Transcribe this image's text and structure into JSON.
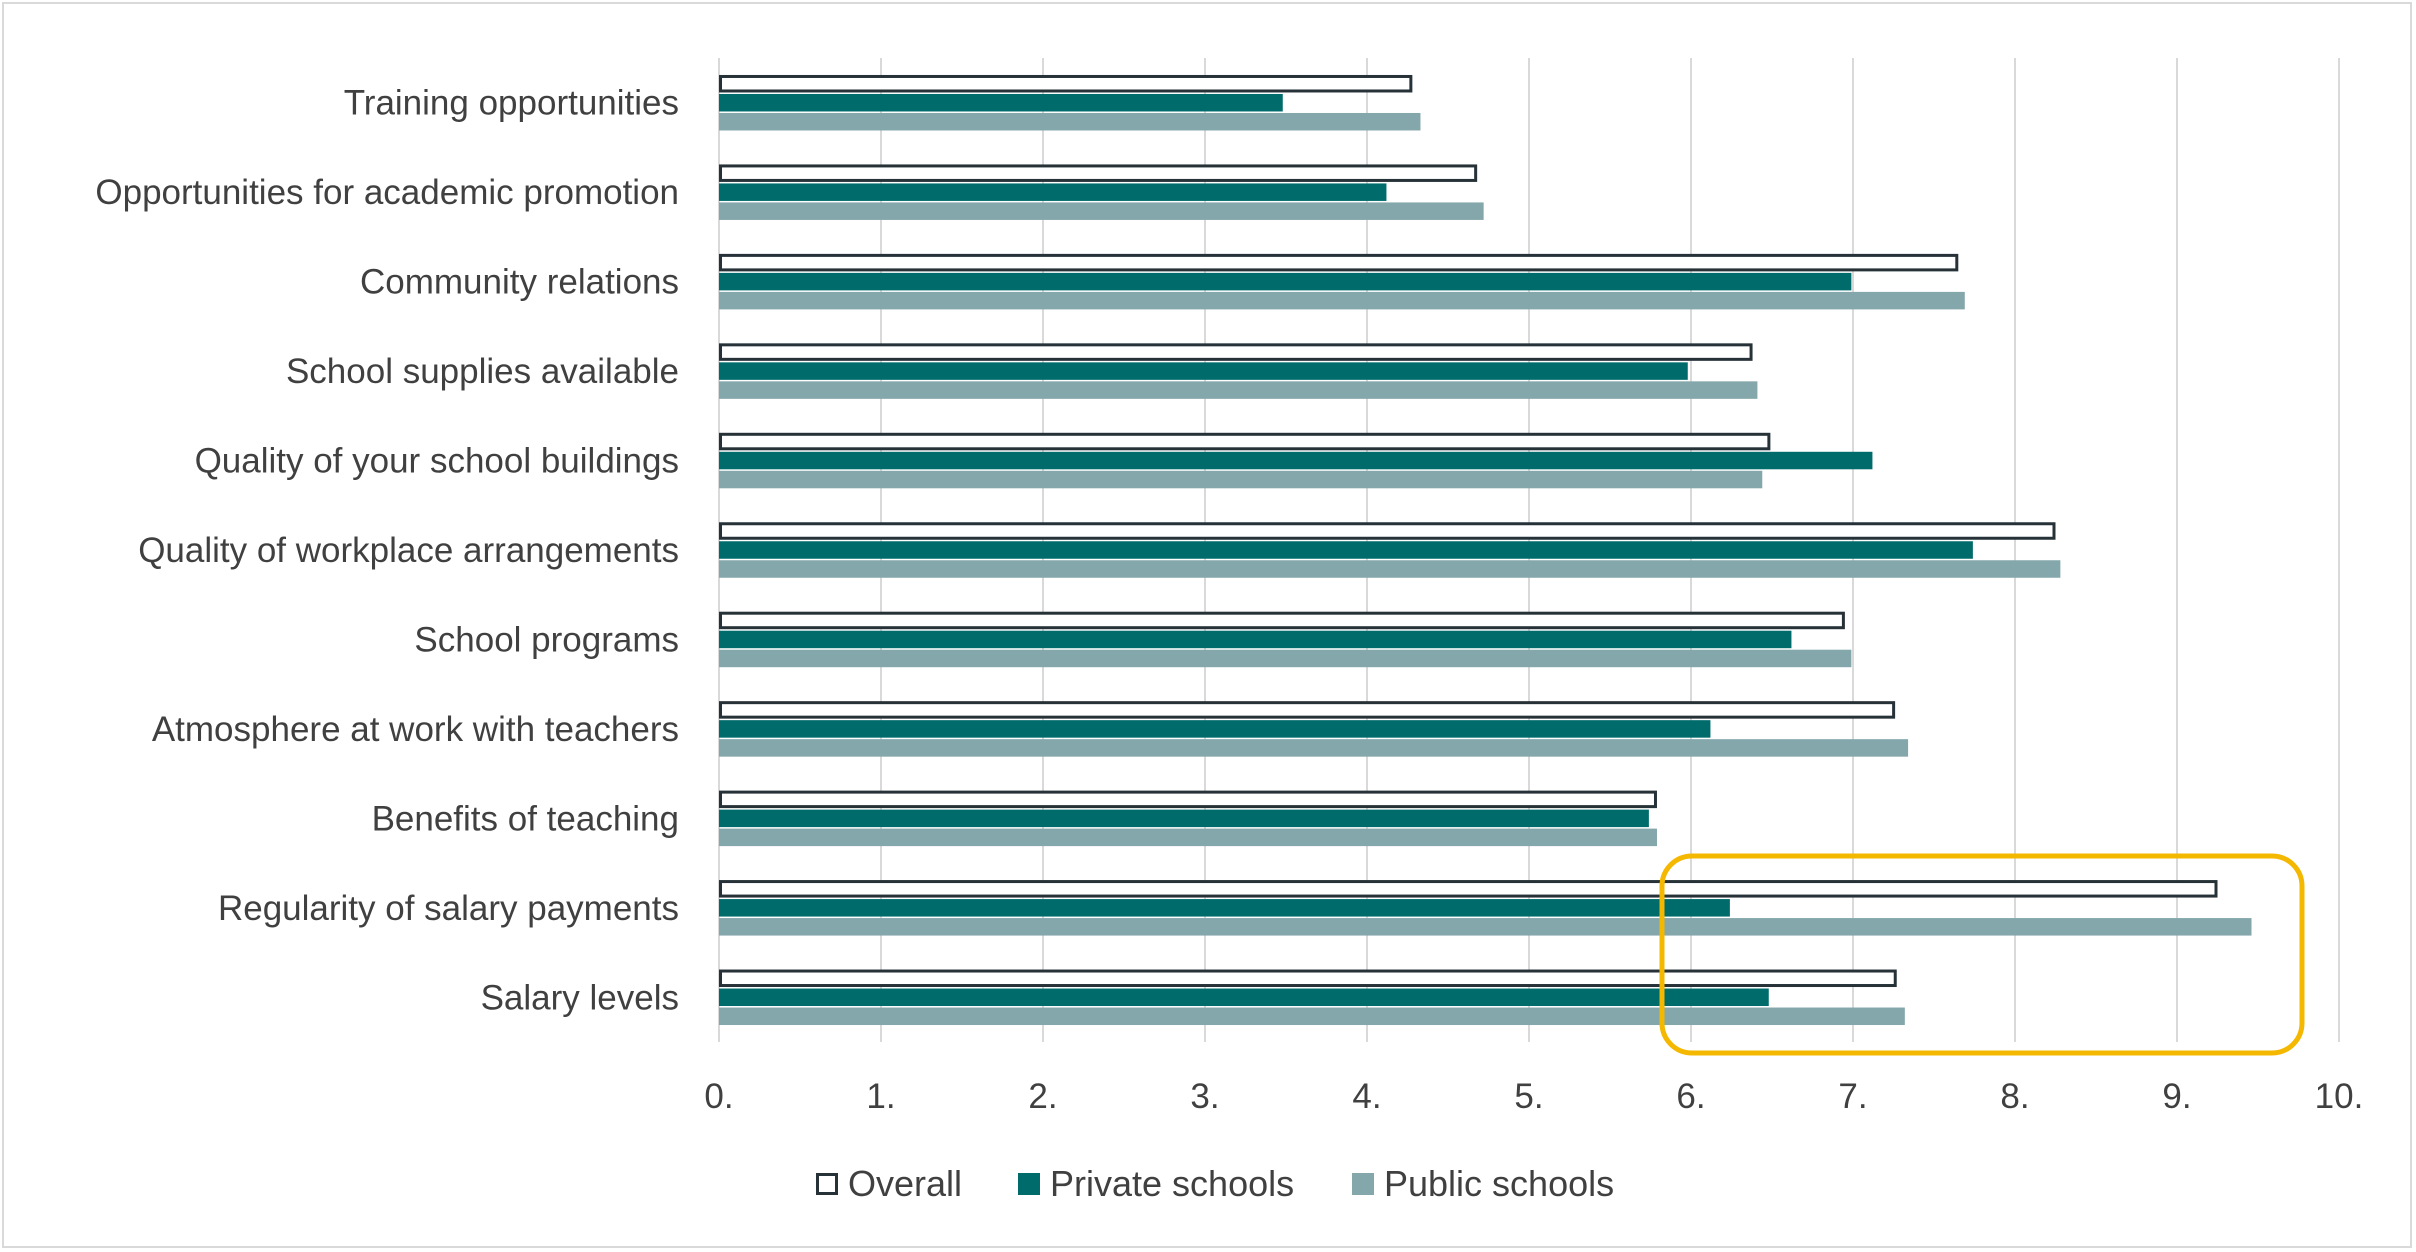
{
  "chart_data": {
    "type": "bar",
    "orientation": "horizontal",
    "categories": [
      "Training opportunities",
      "Opportunities for academic promotion",
      "Community relations",
      "School supplies available",
      "Quality of your school buildings",
      "Quality of workplace arrangements",
      "School programs",
      "Atmosphere at work with teachers",
      "Benefits of teaching",
      "Regularity of salary payments",
      "Salary levels"
    ],
    "series": [
      {
        "name": "Overall",
        "values": [
          4.28,
          4.68,
          7.65,
          6.38,
          6.49,
          8.25,
          6.95,
          7.26,
          5.79,
          9.25,
          7.27
        ],
        "color": "#ffffff",
        "stroke": "#263238"
      },
      {
        "name": "Private schools",
        "values": [
          3.48,
          4.12,
          6.99,
          5.98,
          7.12,
          7.74,
          6.62,
          6.12,
          5.74,
          6.24,
          6.48
        ],
        "color": "#006b6b"
      },
      {
        "name": "Public schools",
        "values": [
          4.33,
          4.72,
          7.69,
          6.41,
          6.44,
          8.28,
          6.99,
          7.34,
          5.79,
          9.46,
          7.32
        ],
        "color": "#84a7ac"
      }
    ],
    "xlim": [
      0,
      10
    ],
    "xticks": [
      "0.",
      "1.",
      "2.",
      "3.",
      "4.",
      "5.",
      "6.",
      "7.",
      "8.",
      "9.",
      "10."
    ],
    "grid": true,
    "legend": "bottom-center",
    "highlight_color": "#f5b800",
    "highlighted_categories": [
      "Regularity of salary payments",
      "Salary levels"
    ]
  }
}
